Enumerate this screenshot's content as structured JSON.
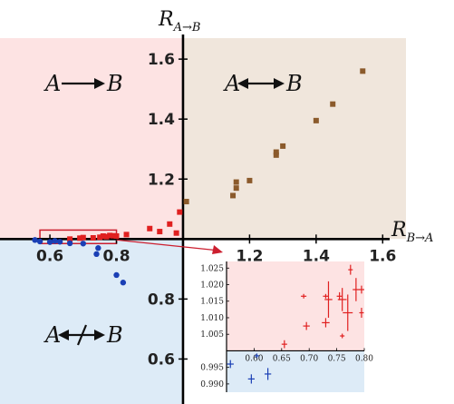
{
  "chart_data": {
    "type": "scatter",
    "title": "",
    "xlabel": {
      "main": "R",
      "sub": "B→A"
    },
    "ylabel": {
      "main": "R",
      "sub": "A→B"
    },
    "xlim": [
      0.45,
      1.67
    ],
    "ylim": [
      0.45,
      1.67
    ],
    "axis_cross": [
      1.0,
      1.0
    ],
    "grid": false,
    "x_ticks": [
      {
        "v": 0.6,
        "label": "0.6"
      },
      {
        "v": 0.8,
        "label": "0.8"
      },
      {
        "v": 1.2,
        "label": "1.2"
      },
      {
        "v": 1.4,
        "label": "1.4"
      },
      {
        "v": 1.6,
        "label": "1.6"
      }
    ],
    "y_ticks": [
      {
        "v": 0.6,
        "label": "0.6"
      },
      {
        "v": 0.8,
        "label": "0.8"
      },
      {
        "v": 1.2,
        "label": "1.2"
      },
      {
        "v": 1.4,
        "label": "1.4"
      },
      {
        "v": 1.6,
        "label": "1.6"
      }
    ],
    "regions": [
      {
        "name": "A → B",
        "left": "A",
        "arrow": "right",
        "right": "B",
        "x": [
          0.45,
          1.0
        ],
        "y": [
          1.0,
          1.67
        ],
        "color": "#fde3e3"
      },
      {
        "name": "A ↔ B",
        "left": "A",
        "arrow": "both",
        "right": "B",
        "x": [
          1.0,
          1.67
        ],
        "y": [
          1.0,
          1.67
        ],
        "color": "#f0e6dc"
      },
      {
        "name": "A ↮ B",
        "left": "A",
        "arrow": "none",
        "right": "B",
        "x": [
          0.45,
          1.0
        ],
        "y": [
          0.45,
          1.0
        ],
        "color": "#ddebf7"
      },
      {
        "name": "",
        "x": [
          1.0,
          1.67
        ],
        "y": [
          0.45,
          1.0
        ],
        "color": "#ffffff"
      }
    ],
    "series": [
      {
        "color": "#8b5a2b",
        "marker": "square",
        "points": [
          [
            1.01,
            1.125
          ],
          [
            1.15,
            1.145
          ],
          [
            1.16,
            1.17
          ],
          [
            1.16,
            1.19
          ],
          [
            1.2,
            1.195
          ],
          [
            1.28,
            1.29
          ],
          [
            1.28,
            1.28
          ],
          [
            1.3,
            1.31
          ],
          [
            1.4,
            1.395
          ],
          [
            1.45,
            1.45
          ],
          [
            1.54,
            1.56
          ]
        ]
      },
      {
        "color": "#e02020",
        "marker": "square",
        "points": [
          [
            0.66,
            1.0
          ],
          [
            0.69,
            1.003
          ],
          [
            0.7,
            1.005
          ],
          [
            0.73,
            1.004
          ],
          [
            0.75,
            1.006
          ],
          [
            0.76,
            1.01
          ],
          [
            0.77,
            1.008
          ],
          [
            0.78,
            1.012
          ],
          [
            0.79,
            1.011
          ],
          [
            0.8,
            1.01
          ],
          [
            0.83,
            1.015
          ],
          [
            0.9,
            1.035
          ],
          [
            0.93,
            1.025
          ],
          [
            0.96,
            1.05
          ],
          [
            0.99,
            1.09
          ],
          [
            0.98,
            1.02
          ]
        ]
      },
      {
        "color": "#1a3fb5",
        "marker": "circle",
        "points": [
          [
            0.555,
            0.997
          ],
          [
            0.57,
            0.992
          ],
          [
            0.6,
            0.99
          ],
          [
            0.615,
            0.994
          ],
          [
            0.63,
            0.991
          ],
          [
            0.66,
            0.986
          ],
          [
            0.7,
            0.985
          ],
          [
            0.74,
            0.95
          ],
          [
            0.745,
            0.97
          ],
          [
            0.8,
            0.88
          ],
          [
            0.82,
            0.855
          ]
        ]
      }
    ],
    "highlight_box": {
      "x": [
        0.57,
        0.8
      ],
      "y": [
        0.985,
        1.03
      ],
      "color": "#cc1f2f"
    },
    "inset": {
      "xlim": [
        0.55,
        0.8
      ],
      "ylim": [
        0.9875,
        1.027
      ],
      "axis_cross": [
        0.55,
        1.0
      ],
      "x_ticks": [
        {
          "v": 0.6,
          "label": "0.60"
        },
        {
          "v": 0.65,
          "label": "0.65"
        },
        {
          "v": 0.7,
          "label": "0.70"
        },
        {
          "v": 0.75,
          "label": "0.75"
        },
        {
          "v": 0.8,
          "label": "0.80"
        }
      ],
      "y_ticks": [
        {
          "v": 0.99,
          "label": "0.990"
        },
        {
          "v": 0.995,
          "label": "0.995"
        },
        {
          "v": 1.005,
          "label": "1.005"
        },
        {
          "v": 1.01,
          "label": "1.010"
        },
        {
          "v": 1.015,
          "label": "1.015"
        },
        {
          "v": 1.02,
          "label": "1.020"
        },
        {
          "v": 1.025,
          "label": "1.025"
        }
      ],
      "upper_color": "#fde3e3",
      "lower_color": "#ddebf7",
      "series": [
        {
          "color": "#e02020",
          "points": [
            {
              "x": 0.655,
              "y": 1.002,
              "xe": 0.005,
              "ye": 0.0012
            },
            {
              "x": 0.69,
              "y": 1.0165,
              "xe": 0.005,
              "ye": 0.0
            },
            {
              "x": 0.695,
              "y": 1.0075,
              "xe": 0.006,
              "ye": 0.0012
            },
            {
              "x": 0.73,
              "y": 1.0165,
              "xe": 0.005,
              "ye": 0.0
            },
            {
              "x": 0.73,
              "y": 1.0085,
              "xe": 0.007,
              "ye": 0.0014
            },
            {
              "x": 0.735,
              "y": 1.0155,
              "xe": 0.007,
              "ye": 0.0055
            },
            {
              "x": 0.755,
              "y": 1.0165,
              "xe": 0.005,
              "ye": 0.0012
            },
            {
              "x": 0.76,
              "y": 1.0155,
              "xe": 0.008,
              "ye": 0.0035
            },
            {
              "x": 0.76,
              "y": 1.0045,
              "xe": 0.0,
              "ye": 0.0
            },
            {
              "x": 0.77,
              "y": 1.0115,
              "xe": 0.009,
              "ye": 0.0055
            },
            {
              "x": 0.775,
              "y": 1.0245,
              "xe": 0.004,
              "ye": 0.0015
            },
            {
              "x": 0.785,
              "y": 1.0185,
              "xe": 0.006,
              "ye": 0.0035
            },
            {
              "x": 0.795,
              "y": 1.0115,
              "xe": 0.004,
              "ye": 0.0015
            },
            {
              "x": 0.795,
              "y": 1.0185,
              "xe": 0.005,
              "ye": 0.0012
            }
          ]
        },
        {
          "color": "#1a3fb5",
          "points": [
            {
              "x": 0.557,
              "y": 0.996,
              "xe": 0.006,
              "ye": 0.0012
            },
            {
              "x": 0.595,
              "y": 0.9915,
              "xe": 0.006,
              "ye": 0.0014
            },
            {
              "x": 0.605,
              "y": 0.9985,
              "xe": 0.0,
              "ye": 0.0
            },
            {
              "x": 0.625,
              "y": 0.993,
              "xe": 0.006,
              "ye": 0.0018
            }
          ]
        }
      ]
    }
  }
}
